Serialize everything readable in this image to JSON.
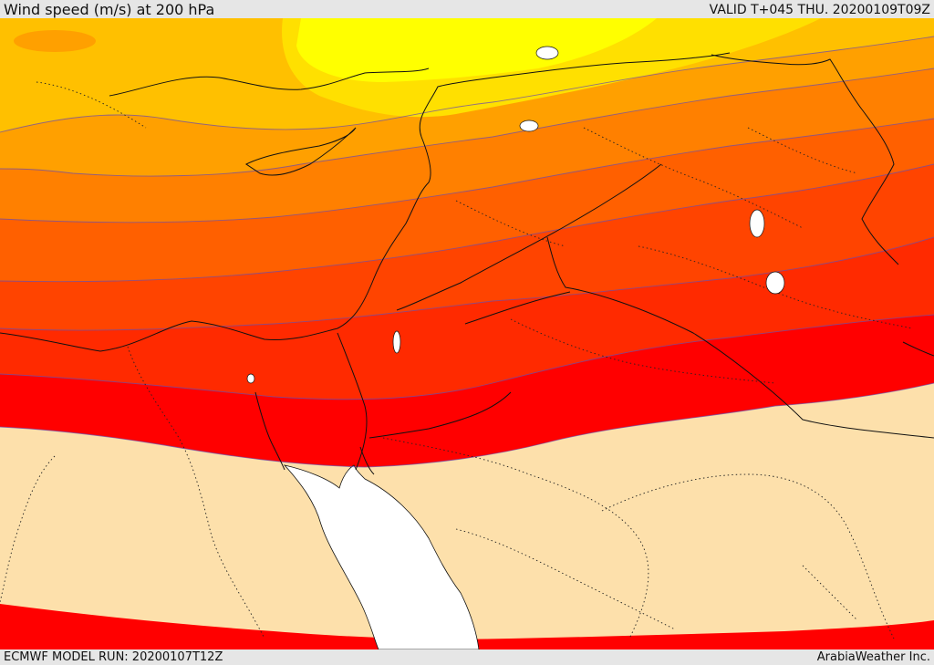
{
  "header": {
    "title": "Wind speed (m/s) at 200 hPa",
    "valid": "VALID T+045 THU. 20200109T09Z"
  },
  "footer": {
    "model_run": "ECMWF MODEL RUN: 20200107T12Z",
    "credit": "ArabiaWeather Inc."
  },
  "colors": {
    "calm": "#fde0ab",
    "band_1": "#ffff00",
    "band_2": "#ffe000",
    "band_3": "#ffc000",
    "band_4": "#ffa000",
    "band_5": "#ff8000",
    "band_6": "#ff6000",
    "band_7": "#ff4400",
    "band_8": "#ff2a00",
    "band_9": "#ff0000",
    "sea": "#ffffff",
    "borders": "#111111"
  }
}
